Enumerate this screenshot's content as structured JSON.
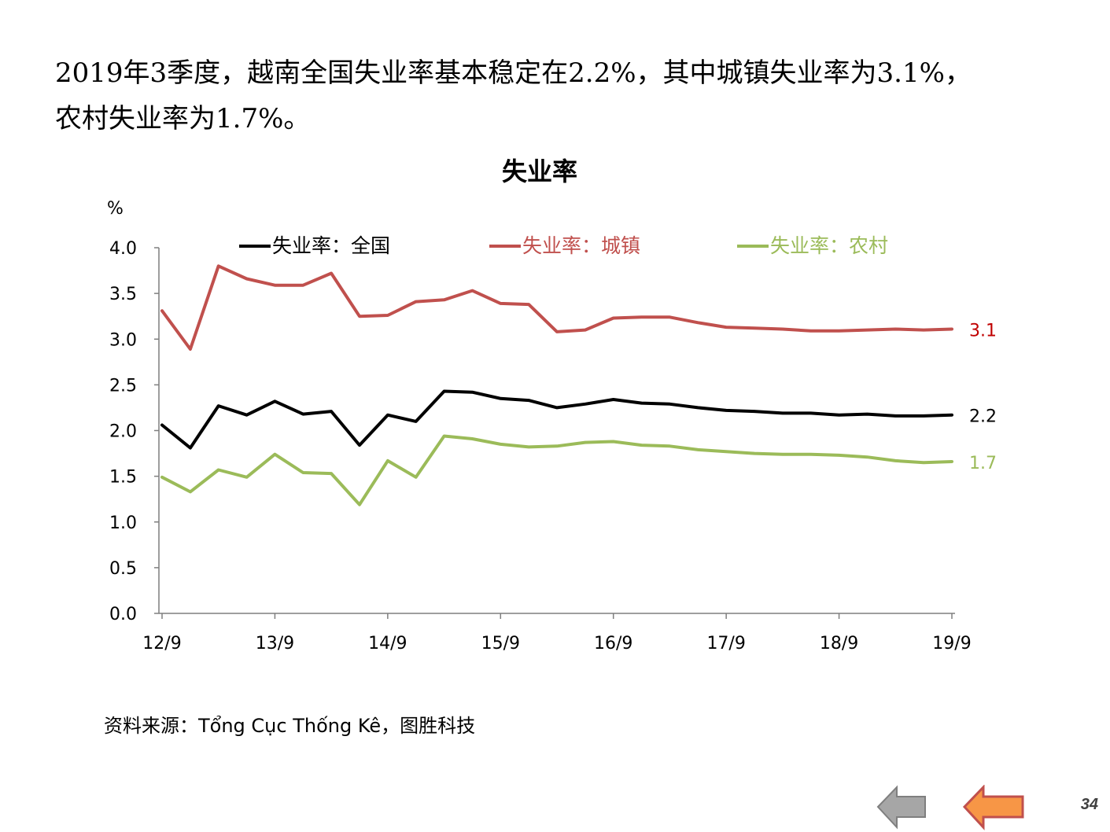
{
  "headline": {
    "line1": "2019年3季度，越南全国失业率基本稳定在2.2%，其中城镇失业率为3.1%，",
    "line2": "农村失业率为1.7%。"
  },
  "chart_data": {
    "type": "line",
    "title": "失业率",
    "ylabel": "%",
    "ylim": [
      0,
      4
    ],
    "yticks": [
      "0.0",
      "0.5",
      "1.0",
      "1.5",
      "2.0",
      "2.5",
      "3.0",
      "3.5",
      "4.0"
    ],
    "xtick_labels": [
      "12/9",
      "13/9",
      "14/9",
      "15/9",
      "16/9",
      "17/9",
      "18/9",
      "19/9"
    ],
    "categories": [
      "12/9",
      "12/12",
      "13/3",
      "13/6",
      "13/9",
      "13/12",
      "14/3",
      "14/6",
      "14/9",
      "14/12",
      "15/3",
      "15/6",
      "15/9",
      "15/12",
      "16/3",
      "16/6",
      "16/9",
      "16/12",
      "17/3",
      "17/6",
      "17/9",
      "17/12",
      "18/3",
      "18/6",
      "18/9",
      "18/12",
      "19/3",
      "19/6",
      "19/9"
    ],
    "legend_position": "top",
    "grid": false,
    "series": [
      {
        "name": "失业率：全国",
        "color": "#000000",
        "end_label": "2.2",
        "values": [
          2.06,
          1.81,
          2.27,
          2.17,
          2.32,
          2.18,
          2.21,
          1.84,
          2.17,
          2.1,
          2.43,
          2.42,
          2.35,
          2.33,
          2.25,
          2.29,
          2.34,
          2.3,
          2.29,
          2.25,
          2.22,
          2.21,
          2.19,
          2.19,
          2.17,
          2.18,
          2.16,
          2.16,
          2.17
        ]
      },
      {
        "name": "失业率：城镇",
        "color": "#c0504d",
        "end_label": "3.1",
        "end_label_color": "#c00000",
        "values": [
          3.31,
          2.89,
          3.8,
          3.66,
          3.59,
          3.59,
          3.72,
          3.25,
          3.26,
          3.41,
          3.43,
          3.53,
          3.39,
          3.38,
          3.08,
          3.1,
          3.23,
          3.24,
          3.24,
          3.18,
          3.13,
          3.12,
          3.11,
          3.09,
          3.09,
          3.1,
          3.11,
          3.1,
          3.11
        ]
      },
      {
        "name": "失业率：农村",
        "color": "#9bbb59",
        "end_label": "1.7",
        "values": [
          1.49,
          1.33,
          1.57,
          1.49,
          1.74,
          1.54,
          1.53,
          1.19,
          1.67,
          1.49,
          1.94,
          1.91,
          1.85,
          1.82,
          1.83,
          1.87,
          1.88,
          1.84,
          1.83,
          1.79,
          1.77,
          1.75,
          1.74,
          1.74,
          1.73,
          1.71,
          1.67,
          1.65,
          1.66
        ]
      }
    ]
  },
  "source": "资料来源：Tổng Cục Thống Kê，图胜科技",
  "nav": {
    "back_color": "#a6a6a6",
    "forward_color": "#f79646"
  },
  "page_number": "34"
}
